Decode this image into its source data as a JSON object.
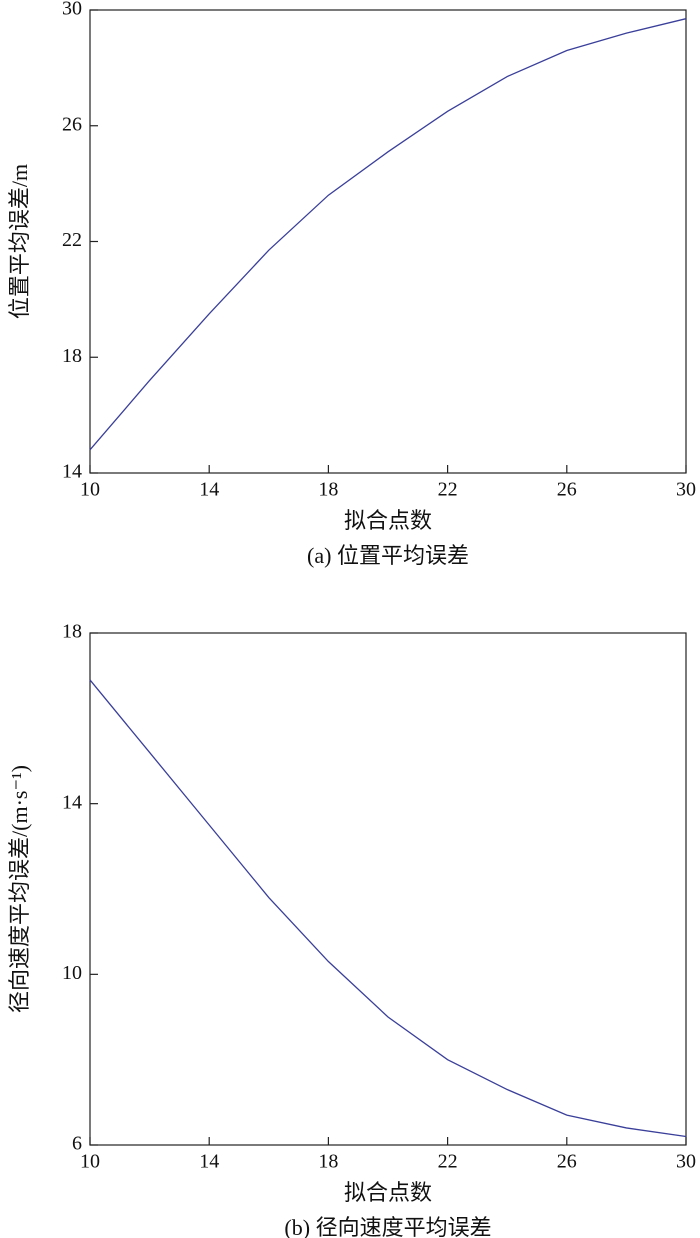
{
  "chart_data": [
    {
      "type": "line",
      "xlabel": "拟合点数",
      "ylabel": "位置平均误差/m",
      "caption": "(a) 位置平均误差",
      "x": [
        10,
        12,
        14,
        16,
        18,
        20,
        22,
        24,
        26,
        28,
        30
      ],
      "series": [
        {
          "color": "#3a3f9a",
          "values": [
            14.8,
            17.2,
            19.5,
            21.7,
            23.6,
            25.1,
            26.5,
            27.7,
            28.6,
            29.2,
            29.7
          ]
        }
      ],
      "xlim": [
        10,
        30
      ],
      "xticks": [
        10,
        14,
        18,
        22,
        26,
        30
      ],
      "ylim": [
        14,
        30
      ],
      "yticks": [
        14,
        18,
        22,
        26,
        30
      ]
    },
    {
      "type": "line",
      "xlabel": "拟合点数",
      "ylabel": "径向速度平均误差/(m·s⁻¹)",
      "caption": "(b) 径向速度平均误差",
      "x": [
        10,
        12,
        14,
        16,
        18,
        20,
        22,
        24,
        26,
        28,
        30
      ],
      "series": [
        {
          "color": "#3a3f9a",
          "values": [
            16.9,
            15.2,
            13.5,
            11.8,
            10.3,
            9.0,
            8.0,
            7.3,
            6.7,
            6.4,
            6.2
          ]
        }
      ],
      "xlim": [
        10,
        30
      ],
      "xticks": [
        10,
        14,
        18,
        22,
        26,
        30
      ],
      "ylim": [
        6,
        18
      ],
      "yticks": [
        6,
        10,
        14,
        18
      ]
    }
  ]
}
